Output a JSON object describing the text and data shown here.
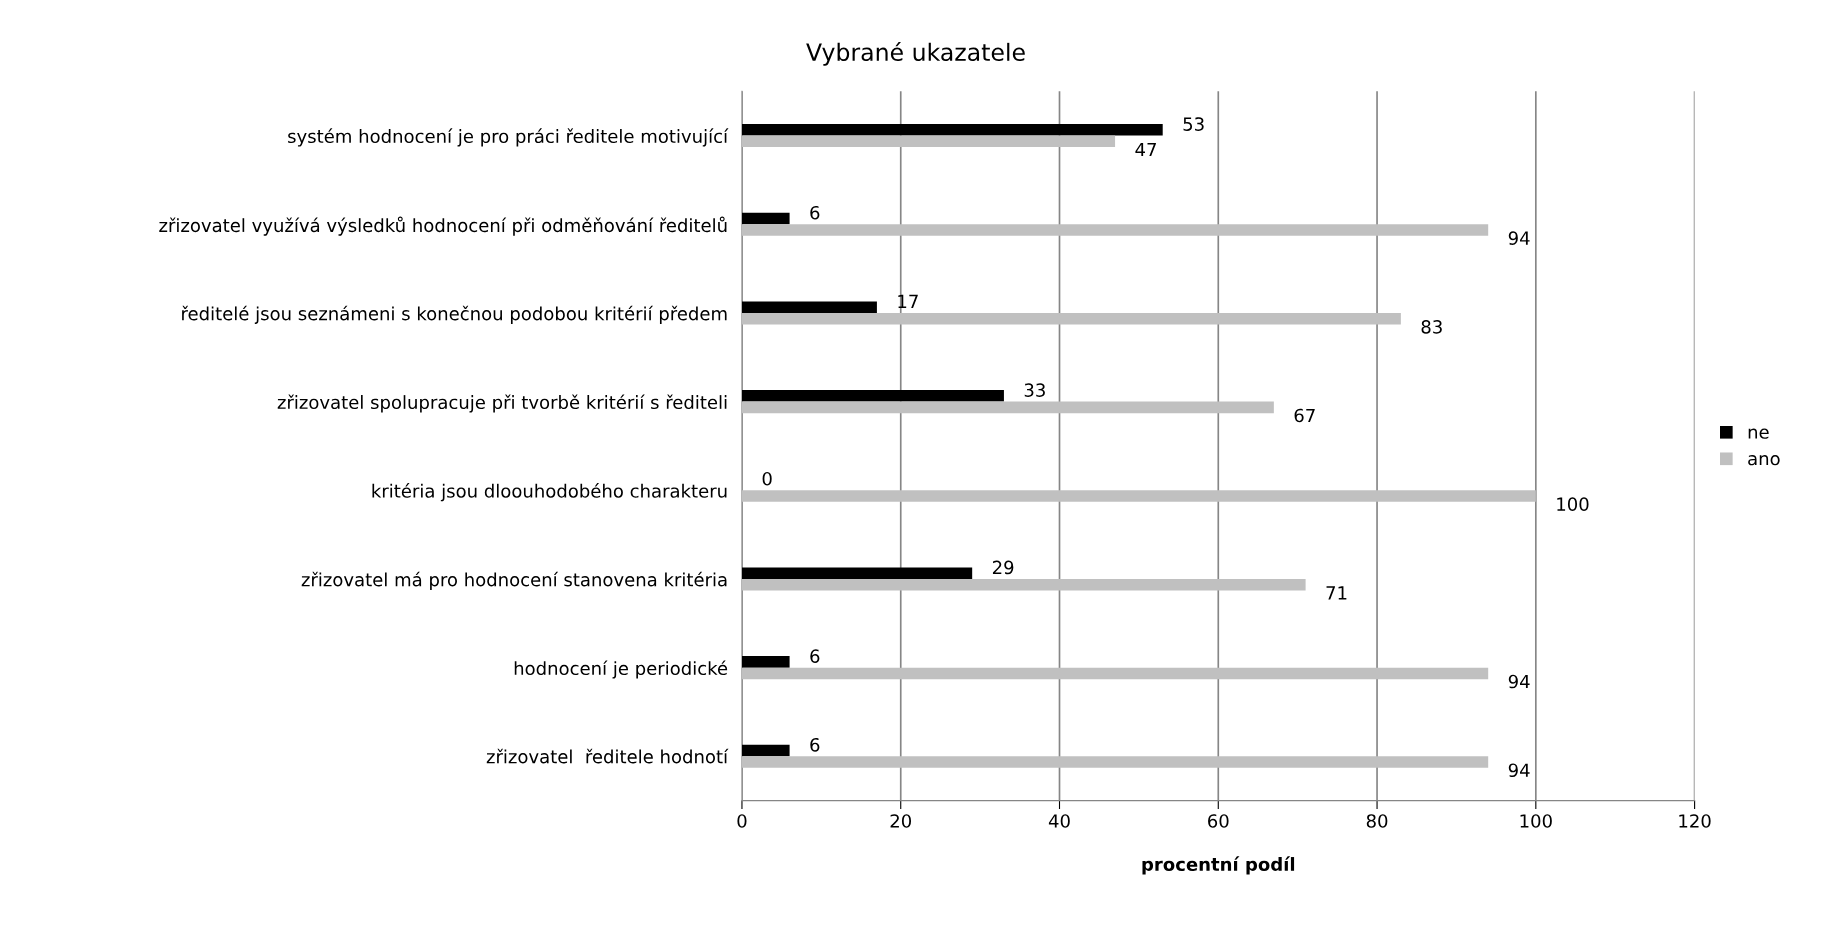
{
  "chart_data": {
    "type": "bar",
    "orientation": "horizontal",
    "title": "Vybrané ukazatele",
    "xlabel": "procentní podíl",
    "categories": [
      "systém hodnocení je pro práci ředitele motivující",
      "zřizovatel využívá výsledků hodnocení při odměňování ředitelů",
      "ředitelé jsou seznámeni s konečnou podobou kritérií předem",
      "zřizovatel spolupracuje při tvorbě kritérií s řediteli",
      "kritéria jsou dloouhodobého charakteru",
      "zřizovatel má pro hodnocení stanovena kritéria",
      "hodnocení je periodické",
      "zřizovatel  ředitele hodnotí"
    ],
    "series": [
      {
        "name": "ne",
        "color": "#000000",
        "values": [
          53,
          6,
          17,
          33,
          0,
          29,
          6,
          6
        ]
      },
      {
        "name": "ano",
        "color": "#c0c0c0",
        "values": [
          47,
          94,
          83,
          67,
          100,
          71,
          94,
          94
        ]
      }
    ],
    "xlim": [
      0,
      120
    ],
    "xticks": [
      0,
      20,
      40,
      60,
      80,
      100,
      120
    ],
    "grid": "x",
    "legend": "right",
    "data_labels": true
  }
}
